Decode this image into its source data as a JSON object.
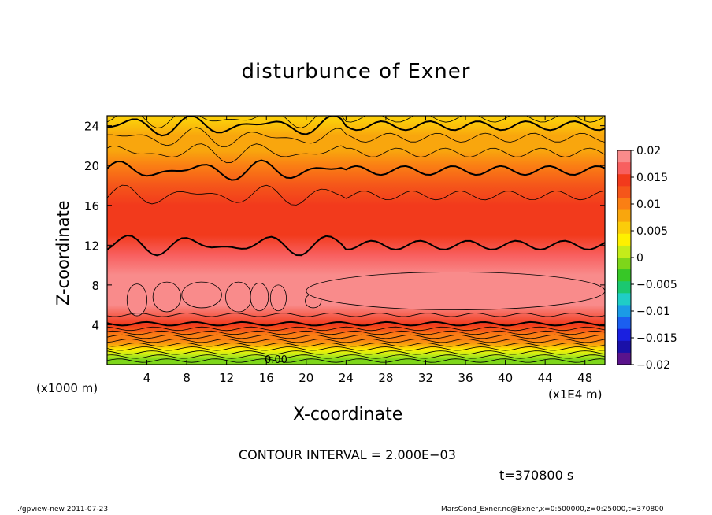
{
  "chart_data": {
    "type": "heatmap",
    "title": "disturbunce of Exner",
    "xlabel": "X-coordinate",
    "ylabel": "Z-coordinate",
    "x_unit_left": "(x1000 m)",
    "x_unit_right": "(x1E4 m)",
    "xlim": [
      0,
      50
    ],
    "ylim": [
      0,
      25
    ],
    "xticks": [
      4,
      8,
      12,
      16,
      20,
      24,
      28,
      32,
      36,
      40,
      44,
      48
    ],
    "xtick_labels": [
      "4",
      "8",
      "12",
      "16",
      "20",
      "24",
      "28",
      "32",
      "36",
      "40",
      "44",
      "48"
    ],
    "yticks": [
      4,
      8,
      12,
      16,
      20,
      24
    ],
    "ytick_labels": [
      "4",
      "8",
      "12",
      "16",
      "20",
      "24"
    ],
    "contour_label": "0.00",
    "colorbar": {
      "levels": [
        0.02,
        0.015,
        0.01,
        0.005,
        0,
        -0.005,
        -0.01,
        -0.015,
        -0.02
      ],
      "labels": [
        "0.02",
        "0.015",
        "0.01",
        "0.005",
        "0",
        "−0.005",
        "−0.01",
        "−0.015",
        "−0.02"
      ],
      "colors": [
        "#f98b8b",
        "#f85f5f",
        "#f23a1c",
        "#f5561a",
        "#fa7f14",
        "#f9a60d",
        "#fbcc0a",
        "#fef000",
        "#c4ec1a",
        "#7ed61a",
        "#37c727",
        "#1bc870",
        "#20cdc6",
        "#1b9be6",
        "#1b5ff0",
        "#1a20e0",
        "#1a10a8",
        "#5a138c"
      ]
    },
    "profile": {
      "z": [
        0.5,
        1.0,
        1.5,
        2.0,
        2.5,
        3.0,
        3.5,
        4.0,
        6.0,
        9.0,
        11.0,
        13.0,
        16.0,
        18.0,
        20.0,
        21.5,
        23.0,
        24.5
      ],
      "value": [
        -0.001,
        0.001,
        0.004,
        0.007,
        0.009,
        0.011,
        0.013,
        0.014,
        0.019,
        0.018,
        0.0165,
        0.015,
        0.014,
        0.012,
        0.01,
        0.008,
        0.007,
        0.006
      ]
    }
  },
  "annotation": {
    "contour_interval": "CONTOUR INTERVAL = 2.000E−03",
    "time": "t=370800 s"
  },
  "footer": {
    "left": "./gpview-new   2011-07-23",
    "right": "MarsCond_Exner.nc@Exner,x=0:500000,z=0:25000,t=370800"
  }
}
